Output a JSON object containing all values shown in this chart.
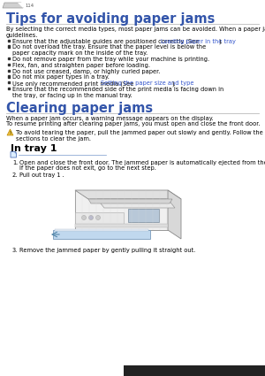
{
  "page_num": "114",
  "title1": "Tips for avoiding paper jams",
  "title2": "Clearing paper jams",
  "subtitle1": "In tray 1",
  "bg_color": "#ffffff",
  "title_color": "#3355aa",
  "text_color": "#000000",
  "link_color": "#3355cc",
  "body_fs": 4.8,
  "title_fs": 10.5,
  "sub_fs": 8.0,
  "divider_color": "#bbbbbb",
  "intro1_line1": "By selecting the correct media types, most paper jams can be avoided. When a paper jam occurs, refer to the next",
  "intro1_line2": "guidelines.",
  "bullets": [
    [
      "Ensure that the adjustable guides are positioned correctly (See ",
      "Loading paper in the tray",
      ")."
    ],
    [
      "Do not overload the tray. Ensure that the paper level is below the paper capacity mark on the inside of the tray.",
      "",
      ""
    ],
    [
      "Do not remove paper from the tray while your machine is printing.",
      "",
      ""
    ],
    [
      "Flex, fan, and straighten paper before loading.",
      "",
      ""
    ],
    [
      "Do not use creased, damp, or highly curled paper.",
      "",
      ""
    ],
    [
      "Do not mix paper types in a tray.",
      "",
      ""
    ],
    [
      "Use only recommended print media (See ",
      "Setting the paper size and type",
      ")."
    ],
    [
      "Ensure that the recommended side of the print media is facing down in the tray, or facing up in the manual tray.",
      "",
      ""
    ]
  ],
  "intro2a": "When a paper jam occurs, a warning message appears on the display.",
  "intro2b": "To resume printing after clearing paper jams, you must open and close the front door.",
  "warn_line1": "To avoid tearing the paper, pull the jammed paper out slowly and gently. Follow the instructions in the following",
  "warn_line2": "sections to clear the jam.",
  "step1a": "Open and close the front door. The jammed paper is automatically ejected from the machine.",
  "step1b": "If the paper does not exit, go to the next step.",
  "step2": "Pull out tray 1 .",
  "step3": "Remove the jammed paper by gently pulling it straight out."
}
